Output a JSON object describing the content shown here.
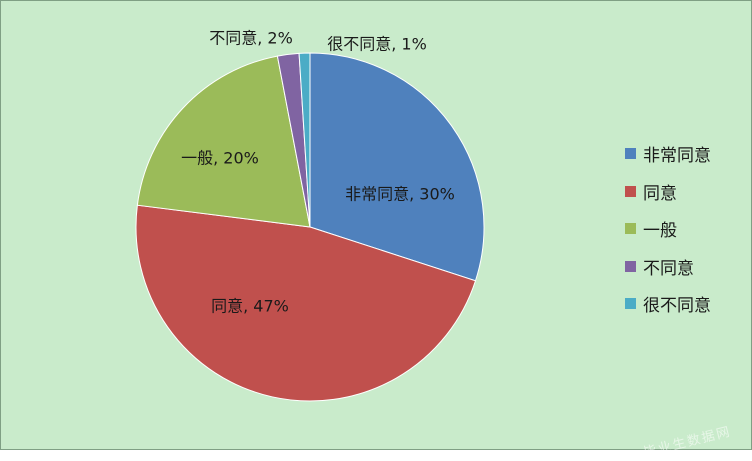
{
  "chart_data": {
    "type": "pie",
    "title": "",
    "slices": [
      {
        "label": "非常同意",
        "value": 30,
        "color": "#4f81bd"
      },
      {
        "label": "同意",
        "value": 47,
        "color": "#c0504d"
      },
      {
        "label": "一般",
        "value": 20,
        "color": "#9bbb59"
      },
      {
        "label": "不同意",
        "value": 2,
        "color": "#8064a2"
      },
      {
        "label": "很不同意",
        "value": 1,
        "color": "#4bacc6"
      }
    ],
    "data_labels": [
      "非常同意, 30%",
      "同意, 47%",
      "一般, 20%",
      "不同意, 2%",
      "很不同意, 1%"
    ],
    "legend_position": "right"
  },
  "background_color": "#c9ebcb",
  "watermark": "毕业生数据网"
}
